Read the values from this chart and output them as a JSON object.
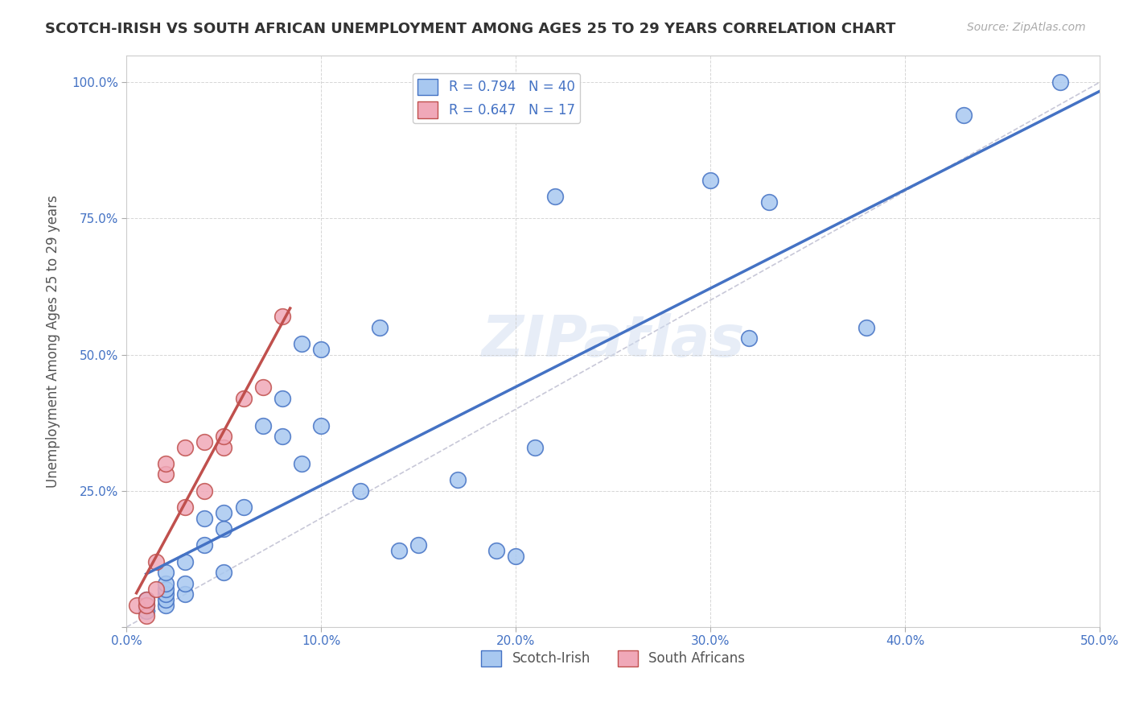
{
  "title": "SCOTCH-IRISH VS SOUTH AFRICAN UNEMPLOYMENT AMONG AGES 25 TO 29 YEARS CORRELATION CHART",
  "source": "Source: ZipAtlas.com",
  "xlabel": "",
  "ylabel": "Unemployment Among Ages 25 to 29 years",
  "xlim": [
    0.0,
    0.5
  ],
  "ylim": [
    0.0,
    1.05
  ],
  "xticks": [
    0.0,
    0.1,
    0.2,
    0.3,
    0.4,
    0.5
  ],
  "xtick_labels": [
    "0.0%",
    "10.0%",
    "20.0%",
    "30.0%",
    "40.0%",
    "50.0%"
  ],
  "yticks": [
    0.0,
    0.25,
    0.5,
    0.75,
    1.0
  ],
  "ytick_labels": [
    "",
    "25.0%",
    "50.0%",
    "75.0%",
    "100.0%"
  ],
  "scotch_irish_x": [
    0.01,
    0.01,
    0.01,
    0.02,
    0.02,
    0.02,
    0.02,
    0.02,
    0.02,
    0.03,
    0.03,
    0.03,
    0.04,
    0.04,
    0.05,
    0.05,
    0.05,
    0.06,
    0.07,
    0.08,
    0.08,
    0.09,
    0.09,
    0.1,
    0.1,
    0.12,
    0.13,
    0.14,
    0.15,
    0.17,
    0.19,
    0.2,
    0.21,
    0.22,
    0.3,
    0.32,
    0.33,
    0.38,
    0.43,
    0.48
  ],
  "scotch_irish_y": [
    0.03,
    0.04,
    0.05,
    0.04,
    0.05,
    0.06,
    0.07,
    0.08,
    0.1,
    0.06,
    0.08,
    0.12,
    0.15,
    0.2,
    0.1,
    0.18,
    0.21,
    0.22,
    0.37,
    0.35,
    0.42,
    0.52,
    0.3,
    0.37,
    0.51,
    0.25,
    0.55,
    0.14,
    0.15,
    0.27,
    0.14,
    0.13,
    0.33,
    0.79,
    0.82,
    0.53,
    0.78,
    0.55,
    0.94,
    1.0
  ],
  "south_african_x": [
    0.005,
    0.01,
    0.01,
    0.01,
    0.015,
    0.015,
    0.02,
    0.02,
    0.03,
    0.03,
    0.04,
    0.04,
    0.05,
    0.05,
    0.06,
    0.07,
    0.08
  ],
  "south_african_y": [
    0.04,
    0.02,
    0.04,
    0.05,
    0.07,
    0.12,
    0.28,
    0.3,
    0.22,
    0.33,
    0.25,
    0.34,
    0.33,
    0.35,
    0.42,
    0.44,
    0.57
  ],
  "scotch_irish_color": "#a8c8f0",
  "south_african_color": "#f0a8b8",
  "scotch_irish_line_color": "#4472c4",
  "south_african_line_color": "#c0504d",
  "R_scotch": 0.794,
  "N_scotch": 40,
  "R_south": 0.647,
  "N_south": 17,
  "diagonal_color": "#c8c8d8",
  "watermark": "ZIPatlas",
  "watermark_color": "#d0ddf0",
  "legend_label_scotch": "Scotch-Irish",
  "legend_label_south": "South Africans"
}
